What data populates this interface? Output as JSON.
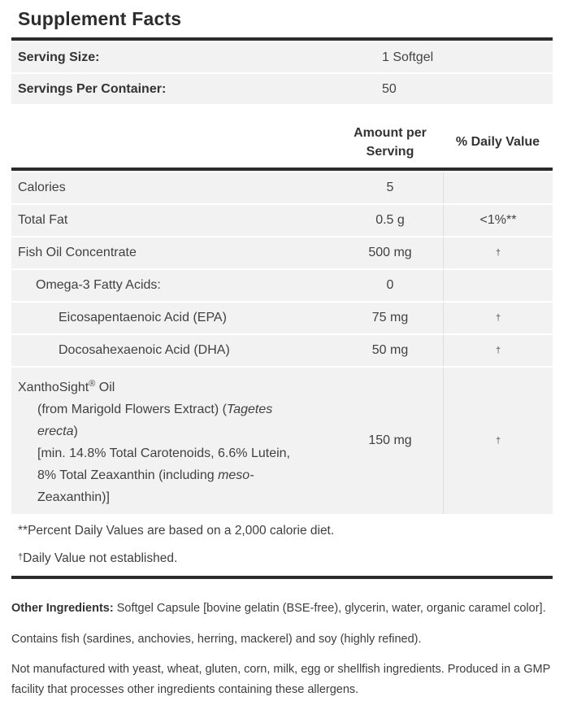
{
  "panel": {
    "title": "Supplement Facts"
  },
  "serving": {
    "size_label": "Serving Size:",
    "size_value": "1 Softgel",
    "per_container_label": "Servings Per Container:",
    "per_container_value": "50"
  },
  "table": {
    "col_amount": "Amount per Serving",
    "col_dv": "% Daily Value",
    "rows": [
      {
        "label": "Calories",
        "amount": "5",
        "dv": ""
      },
      {
        "label": "Total Fat",
        "amount": "0.5 g",
        "dv": "<1%**"
      },
      {
        "label": "Fish Oil Concentrate",
        "amount": "500 mg",
        "dv": "†"
      },
      {
        "label": "Omega-3 Fatty Acids:",
        "amount": "0",
        "dv": ""
      },
      {
        "label": "Eicosapentaenoic Acid (EPA)",
        "amount": "75 mg",
        "dv": "†"
      },
      {
        "label": "Docosahexaenoic Acid (DHA)",
        "amount": "50 mg",
        "dv": "†"
      }
    ],
    "xantho": {
      "amount": "150 mg",
      "dv": "†",
      "l1a": "XanthoSight",
      "l1sup": "®",
      "l1b": " Oil",
      "l2a": "(from Marigold Flowers Extract) (",
      "l2i": "Tagetes",
      "l3i": "erecta",
      "l3a": ")",
      "l4": "[min. 14.8% Total Carotenoids, 6.6% Lutein,",
      "l5a": "8% Total Zeaxanthin (including ",
      "l5i": "meso-",
      "l6": "Zeaxanthin)]"
    }
  },
  "footnotes": {
    "percent": "**Percent Daily Values are based on a 2,000 calorie diet.",
    "dagger_symbol": "†",
    "dagger_text": "Daily Value not established."
  },
  "other": {
    "ingredients_label": "Other Ingredients:",
    "ingredients_text": " Softgel Capsule [bovine gelatin (BSE-free), glycerin, water, organic caramel color].",
    "contains": "Contains fish (sardines, anchovies, herring, mackerel) and soy (highly refined).",
    "allergen": "Not manufactured with yeast, wheat, gluten, corn, milk, egg or shellfish ingredients. Produced in a GMP facility that processes other ingredients containing these allergens."
  },
  "colors": {
    "bar": "#2b2b2b",
    "row_background": "#f2f2f2",
    "column_divider": "#dcdcdc",
    "text": "#414141"
  }
}
